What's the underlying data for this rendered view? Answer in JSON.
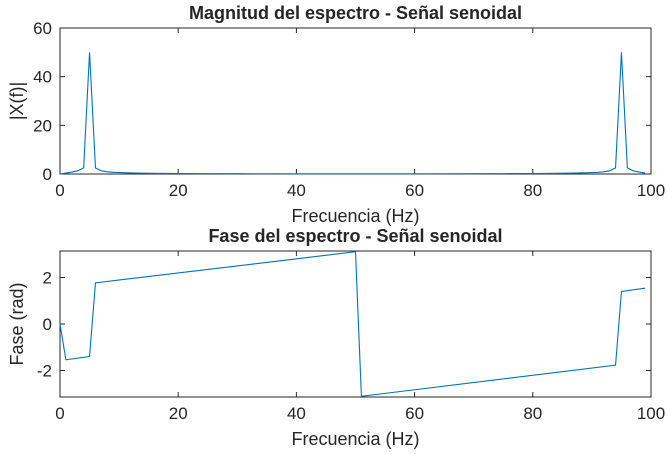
{
  "chart_data": [
    {
      "type": "line",
      "title": "Magnitud del espectro - Señal senoidal",
      "xlabel": "Frecuencia (Hz)",
      "ylabel": "|X(f)|",
      "xlim": [
        0,
        100
      ],
      "ylim": [
        0,
        60
      ],
      "xticks": [
        0,
        20,
        40,
        60,
        80,
        100
      ],
      "yticks": [
        0,
        20,
        40,
        60
      ],
      "grid": false,
      "color": "#0072BD",
      "series": [
        {
          "x": [
            0,
            1,
            2,
            3,
            4,
            5,
            6,
            7,
            8,
            9,
            10,
            12,
            14,
            16,
            18,
            20,
            25,
            30,
            35,
            40,
            45,
            50,
            55,
            60,
            65,
            70,
            75,
            80,
            82,
            84,
            86,
            88,
            90,
            91,
            92,
            93,
            94,
            95,
            96,
            97,
            98,
            99
          ],
          "y": [
            0,
            0.4,
            0.8,
            1.3,
            2.5,
            50,
            2.5,
            1.3,
            0.9,
            0.7,
            0.6,
            0.45,
            0.35,
            0.3,
            0.25,
            0.2,
            0.15,
            0.12,
            0.1,
            0.08,
            0.07,
            0.06,
            0.07,
            0.08,
            0.1,
            0.12,
            0.15,
            0.2,
            0.25,
            0.3,
            0.35,
            0.45,
            0.6,
            0.7,
            0.9,
            1.3,
            2.5,
            50,
            2.5,
            1.3,
            0.8,
            0.4
          ]
        }
      ]
    },
    {
      "type": "line",
      "title": "Fase del espectro - Señal senoidal",
      "xlabel": "Frecuencia (Hz)",
      "ylabel": "Fase (rad)",
      "xlim": [
        0,
        100
      ],
      "ylim": [
        -3.1416,
        3.1416
      ],
      "xticks": [
        0,
        20,
        40,
        60,
        80,
        100
      ],
      "yticks": [
        -2,
        0,
        2
      ],
      "grid": false,
      "color": "#0072BD",
      "series": [
        {
          "x": [
            0,
            1,
            5,
            6,
            50,
            51,
            94,
            95,
            99
          ],
          "y": [
            0,
            -1.54,
            -1.4,
            1.77,
            3.11,
            -3.11,
            -1.77,
            1.4,
            1.54
          ]
        }
      ]
    }
  ]
}
